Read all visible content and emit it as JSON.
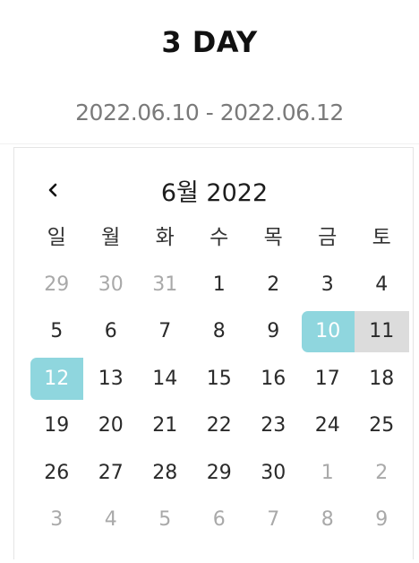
{
  "header": {
    "title": "3 DAY",
    "date_range": "2022.06.10 - 2022.06.12"
  },
  "calendar": {
    "month_label": "6월 2022",
    "prev_icon": "chevron-left-icon",
    "weekdays": [
      "일",
      "월",
      "화",
      "수",
      "목",
      "금",
      "토"
    ],
    "colors": {
      "selected": "#8fd6de",
      "in_range": "#dcdcdc",
      "outside_month": "#a9a9a9"
    },
    "days": [
      {
        "label": "29",
        "state": "other"
      },
      {
        "label": "30",
        "state": "other"
      },
      {
        "label": "31",
        "state": "other"
      },
      {
        "label": "1",
        "state": "normal"
      },
      {
        "label": "2",
        "state": "normal"
      },
      {
        "label": "3",
        "state": "normal"
      },
      {
        "label": "4",
        "state": "normal"
      },
      {
        "label": "5",
        "state": "normal"
      },
      {
        "label": "6",
        "state": "normal"
      },
      {
        "label": "7",
        "state": "normal"
      },
      {
        "label": "8",
        "state": "normal"
      },
      {
        "label": "9",
        "state": "normal"
      },
      {
        "label": "10",
        "state": "start"
      },
      {
        "label": "11",
        "state": "in-range"
      },
      {
        "label": "12",
        "state": "end"
      },
      {
        "label": "13",
        "state": "normal"
      },
      {
        "label": "14",
        "state": "normal"
      },
      {
        "label": "15",
        "state": "normal"
      },
      {
        "label": "16",
        "state": "normal"
      },
      {
        "label": "17",
        "state": "normal"
      },
      {
        "label": "18",
        "state": "normal"
      },
      {
        "label": "19",
        "state": "normal"
      },
      {
        "label": "20",
        "state": "normal"
      },
      {
        "label": "21",
        "state": "normal"
      },
      {
        "label": "22",
        "state": "normal"
      },
      {
        "label": "23",
        "state": "normal"
      },
      {
        "label": "24",
        "state": "normal"
      },
      {
        "label": "25",
        "state": "normal"
      },
      {
        "label": "26",
        "state": "normal"
      },
      {
        "label": "27",
        "state": "normal"
      },
      {
        "label": "28",
        "state": "normal"
      },
      {
        "label": "29",
        "state": "normal"
      },
      {
        "label": "30",
        "state": "normal"
      },
      {
        "label": "1",
        "state": "other"
      },
      {
        "label": "2",
        "state": "other"
      },
      {
        "label": "3",
        "state": "other"
      },
      {
        "label": "4",
        "state": "other"
      },
      {
        "label": "5",
        "state": "other"
      },
      {
        "label": "6",
        "state": "other"
      },
      {
        "label": "7",
        "state": "other"
      },
      {
        "label": "8",
        "state": "other"
      },
      {
        "label": "9",
        "state": "other"
      }
    ]
  }
}
